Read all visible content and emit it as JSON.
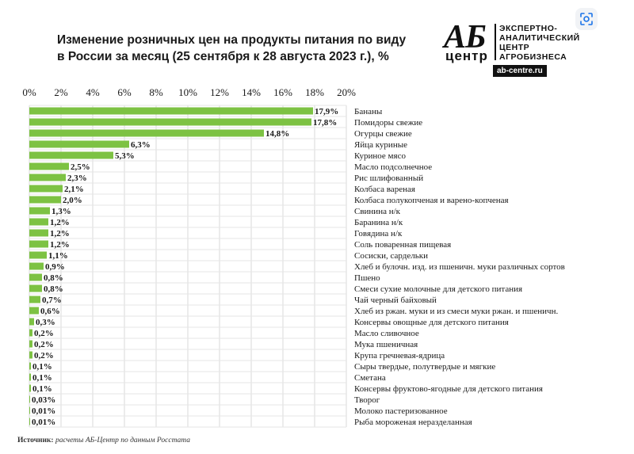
{
  "header": {
    "title_line1": "Изменение розничных цен на продукты питания по виду",
    "title_line2": "в России за месяц (25 сентября к 28 августа 2023 г.), %"
  },
  "logo": {
    "mark": "АБ",
    "mark_sub": "центр",
    "text_line1": "ЭКСПЕРТНО-",
    "text_line2": "АНАЛИТИЧЕСКИЙ",
    "text_line3": "ЦЕНТР",
    "text_line4": "АГРОБИЗНЕСА",
    "url": "ab-centre.ru"
  },
  "footer": {
    "source_key": "Источник:",
    "source_text": "расчеты АБ-Центр по данным Росстата"
  },
  "chart_data": {
    "type": "bar",
    "orientation": "horizontal",
    "title": "Изменение розничных цен на продукты питания по виду в России за месяц (25 сентября к 28 августа 2023 г.), %",
    "xlim": [
      0,
      20
    ],
    "x_ticks": [
      0,
      2,
      4,
      6,
      8,
      10,
      12,
      14,
      16,
      18,
      20
    ],
    "x_tick_labels": [
      "0%",
      "2%",
      "4%",
      "6%",
      "8%",
      "10%",
      "12%",
      "14%",
      "16%",
      "18%",
      "20%"
    ],
    "x_axis_position": "top",
    "grid": true,
    "bar_color": "#7dc243",
    "categories": [
      "Бананы",
      "Помидоры свежие",
      "Огурцы свежие",
      "Яйца куриные",
      "Куриное мясо",
      "Масло подсолнечное",
      "Рис шлифованный",
      "Колбаса вареная",
      "Колбаса полукопченая и варено-копченая",
      "Свинина н/к",
      "Баранина н/к",
      "Говядина н/к",
      "Соль поваренная пищевая",
      "Сосиски, сардельки",
      "Хлеб и булочн. изд. из пшеничн. муки различных сортов",
      "Пшено",
      "Смеси сухие молочные для детского питания",
      "Чай черный байховый",
      "Хлеб из ржан. муки и из смеси муки ржан. и пшеничн.",
      "Консервы овощные для детского питания",
      "Масло сливочное",
      "Мука пшеничная",
      "Крупа гречневая-ядрица",
      "Сыры твердые, полутвердые и мягкие",
      "Сметана",
      "Консервы фруктово-ягодные для детского питания",
      "Творог",
      "Молоко пастеризованное",
      "Рыба мороженая неразделанная"
    ],
    "values": [
      17.9,
      17.8,
      14.8,
      6.3,
      5.3,
      2.5,
      2.3,
      2.1,
      2.0,
      1.3,
      1.2,
      1.2,
      1.2,
      1.1,
      0.9,
      0.8,
      0.8,
      0.7,
      0.6,
      0.3,
      0.2,
      0.2,
      0.2,
      0.1,
      0.1,
      0.1,
      0.03,
      0.01,
      0.01
    ],
    "value_labels": [
      "17,9%",
      "17,8%",
      "14,8%",
      "6,3%",
      "5,3%",
      "2,5%",
      "2,3%",
      "2,1%",
      "2,0%",
      "1,3%",
      "1,2%",
      "1,2%",
      "1,2%",
      "1,1%",
      "0,9%",
      "0,8%",
      "0,8%",
      "0,7%",
      "0,6%",
      "0,3%",
      "0,2%",
      "0,2%",
      "0,2%",
      "0,1%",
      "0,1%",
      "0,1%",
      "0,03%",
      "0,01%",
      "0,01%"
    ]
  }
}
